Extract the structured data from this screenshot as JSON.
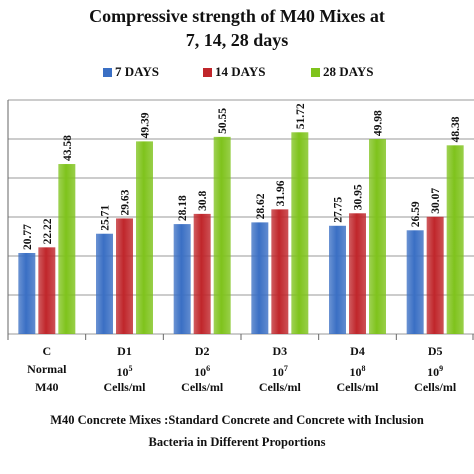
{
  "chart_data": {
    "type": "bar",
    "title": [
      "Compressive strength of M40 Mixes at",
      "7, 14, 28 days"
    ],
    "xlabel": [
      "M40 Concrete Mixes :Standard Concrete and Concrete with Inclusion",
      "Bacteria in Different Proportions"
    ],
    "ylabel": "",
    "ylim": [
      0,
      60
    ],
    "grid": true,
    "legend_position": "top-center",
    "categories": [
      {
        "lines": [
          "C",
          "Normal",
          "M40"
        ]
      },
      {
        "lines": [
          "D1",
          "10",
          "Cells/ml"
        ],
        "exponent": "5"
      },
      {
        "lines": [
          "D2",
          "10",
          "Cells/ml"
        ],
        "exponent": "6"
      },
      {
        "lines": [
          "D3",
          "10",
          "Cells/ml"
        ],
        "exponent": "7"
      },
      {
        "lines": [
          "D4",
          "10",
          "Cells/ml"
        ],
        "exponent": "8"
      },
      {
        "lines": [
          "D5",
          "10",
          "Cells/ml"
        ],
        "exponent": "9"
      }
    ],
    "series": [
      {
        "name": "7 DAYS",
        "color": "#3a6fc4",
        "values": [
          20.77,
          25.71,
          28.18,
          28.62,
          27.75,
          26.59
        ]
      },
      {
        "name": "14 DAYS",
        "color": "#c0262b",
        "values": [
          22.22,
          29.63,
          30.8,
          31.96,
          30.95,
          30.07
        ]
      },
      {
        "name": "28 DAYS",
        "color": "#7fc31c",
        "values": [
          43.58,
          49.39,
          50.55,
          51.72,
          49.98,
          48.38
        ]
      }
    ]
  }
}
